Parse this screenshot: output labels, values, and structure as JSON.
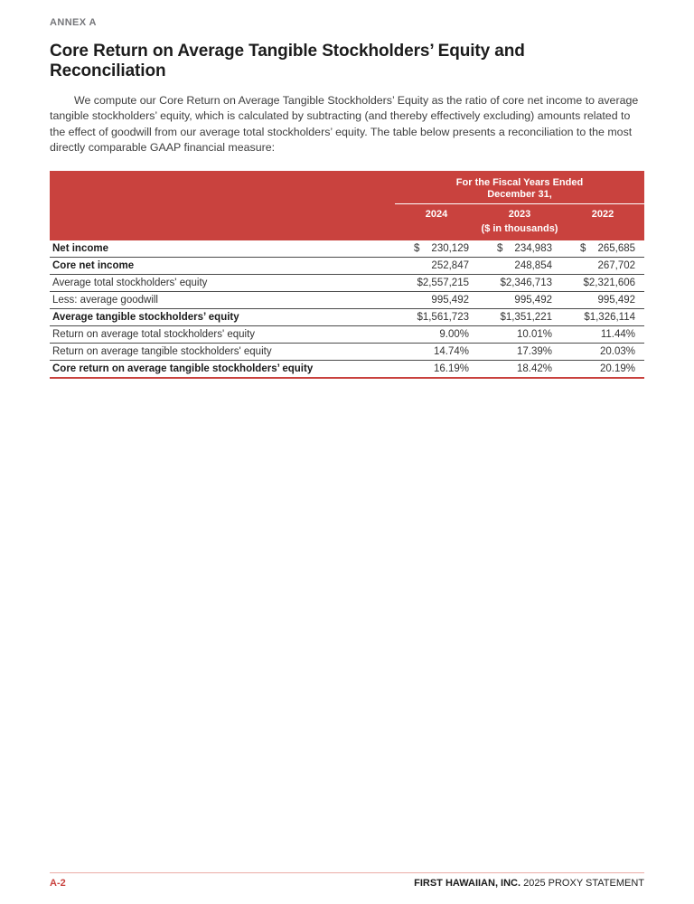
{
  "page": {
    "annex_label": "ANNEX A",
    "title": "Core Return on Average Tangible Stockholders’ Equity and Reconciliation",
    "paragraph": "We compute our Core Return on Average Tangible Stockholders’ Equity as the ratio of core net income to average tangible stockholders’ equity, which is calculated by subtracting (and thereby effectively excluding) amounts related to the effect of goodwill from our average total stockholders’ equity. The table below presents a reconciliation to the most directly comparable GAAP financial measure:"
  },
  "table": {
    "header": {
      "spanner_line1": "For the Fiscal Years Ended",
      "spanner_line2": "December 31,",
      "years": [
        "2024",
        "2023",
        "2022"
      ],
      "units_note": "($ in thousands)"
    },
    "rows": [
      {
        "label": "Net income",
        "bold": true,
        "dollar_split": true,
        "values": [
          "230,129",
          "234,983",
          "265,685"
        ]
      },
      {
        "label": "Core net income",
        "bold": true,
        "dollar_split": false,
        "values": [
          "252,847",
          "248,854",
          "267,702"
        ]
      },
      {
        "label": "Average total stockholders' equity",
        "bold": false,
        "dollar_split": false,
        "values": [
          "$2,557,215",
          "$2,346,713",
          "$2,321,606"
        ]
      },
      {
        "label": "Less: average goodwill",
        "bold": false,
        "dollar_split": false,
        "values": [
          "995,492",
          "995,492",
          "995,492"
        ]
      },
      {
        "label": "Average tangible stockholders’ equity",
        "bold": true,
        "dollar_split": false,
        "values": [
          "$1,561,723",
          "$1,351,221",
          "$1,326,114"
        ]
      },
      {
        "label": "Return on average total stockholders' equity",
        "bold": false,
        "dollar_split": false,
        "values": [
          "9.00%",
          "10.01%",
          "11.44%"
        ]
      },
      {
        "label": "Return on average tangible stockholders' equity",
        "bold": false,
        "dollar_split": false,
        "values": [
          "14.74%",
          "17.39%",
          "20.03%"
        ]
      },
      {
        "label": "Core return on average tangible stockholders’ equity",
        "bold": true,
        "dollar_split": false,
        "values": [
          "16.19%",
          "18.42%",
          "20.19%"
        ]
      }
    ]
  },
  "footer": {
    "page_number": "A-2",
    "company": "FIRST HAWAIIAN, INC.",
    "statement": "2025 PROXY STATEMENT"
  },
  "colors": {
    "accent_red": "#C9423E",
    "footer_rule": "#EBADA6",
    "row_rule": "#4a4a4a",
    "annex_gray": "#76777b"
  }
}
